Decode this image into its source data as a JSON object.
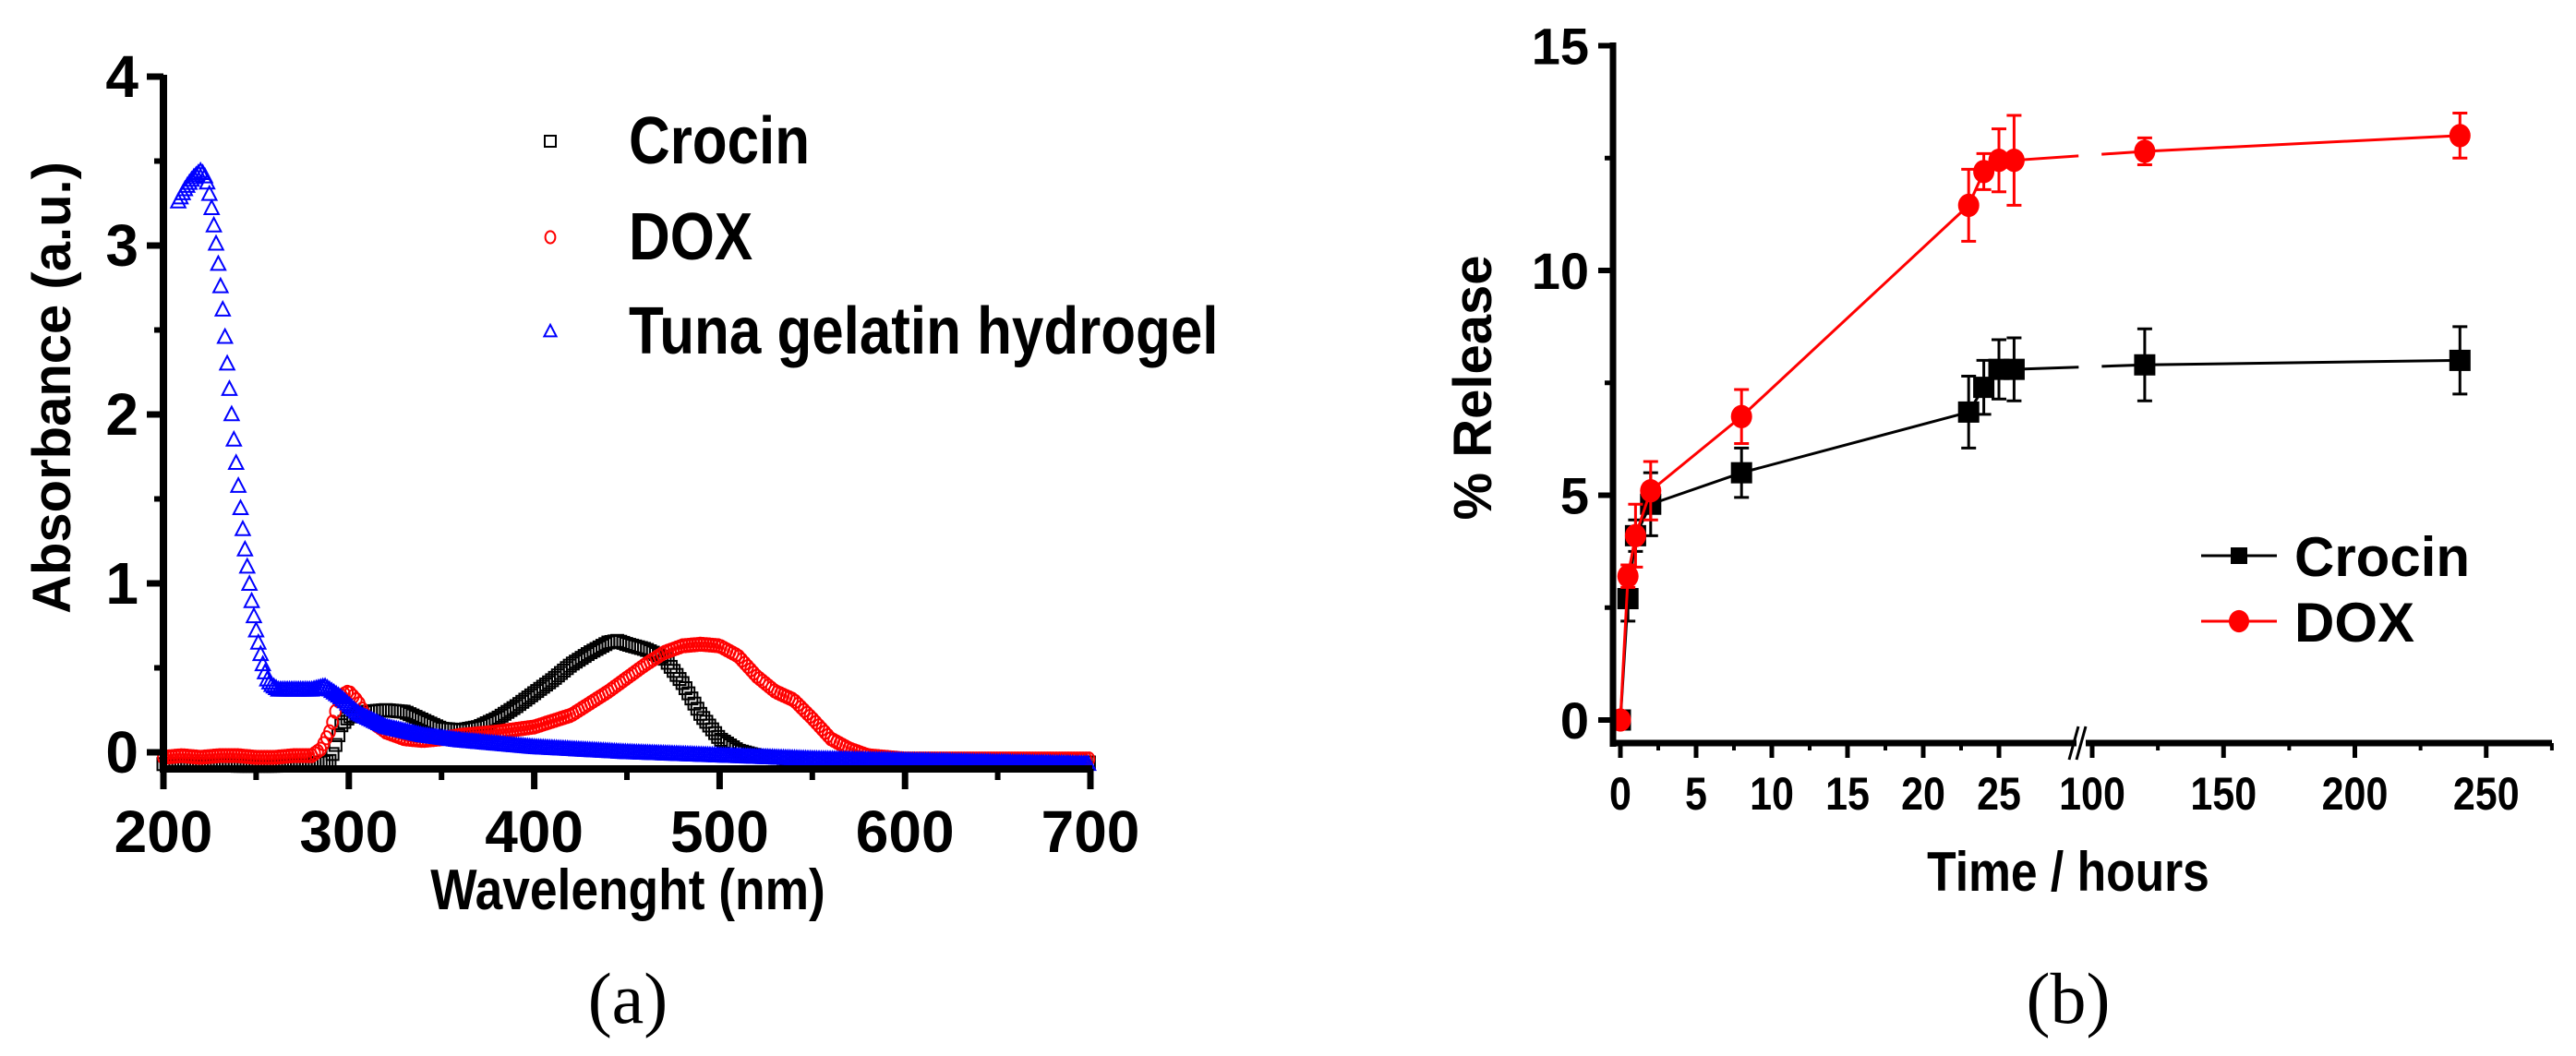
{
  "figure": {
    "panel_labels": [
      "(a)",
      "(b)"
    ]
  },
  "chart_data": [
    {
      "id": "a",
      "type": "scatter",
      "title": "",
      "xlabel": "Wavelenght (nm)",
      "ylabel": "Absorbance (a.u.)",
      "xlim": [
        200,
        700
      ],
      "ylim": [
        -0.1,
        4
      ],
      "xticks": [
        200,
        300,
        400,
        500,
        600,
        700
      ],
      "xtick_labels": [
        "200",
        "300",
        "400",
        "500",
        "600",
        "700"
      ],
      "yticks": [
        0,
        1,
        2,
        3,
        4
      ],
      "ytick_labels": [
        "0",
        "1",
        "2",
        "3",
        "4"
      ],
      "grid": false,
      "legend_position": "upper right",
      "series": [
        {
          "name": "Crocin",
          "marker": "open-square",
          "color": "#000000",
          "x": [
            200,
            220,
            240,
            260,
            280,
            290,
            293,
            296,
            300,
            310,
            320,
            330,
            340,
            350,
            360,
            370,
            380,
            390,
            400,
            410,
            420,
            430,
            440,
            445,
            450,
            460,
            470,
            480,
            490,
            500,
            510,
            520,
            540,
            560,
            600,
            650,
            700
          ],
          "y": [
            -0.07,
            -0.07,
            -0.08,
            -0.08,
            -0.07,
            -0.05,
            0.05,
            0.16,
            0.21,
            0.24,
            0.25,
            0.24,
            0.19,
            0.14,
            0.13,
            0.15,
            0.2,
            0.27,
            0.35,
            0.43,
            0.52,
            0.59,
            0.65,
            0.66,
            0.64,
            0.61,
            0.56,
            0.41,
            0.22,
            0.08,
            0.01,
            -0.02,
            -0.04,
            -0.05,
            -0.06,
            -0.06,
            -0.06
          ]
        },
        {
          "name": "DOX",
          "marker": "open-circle",
          "color": "#ff0000",
          "x": [
            200,
            210,
            220,
            230,
            240,
            250,
            260,
            270,
            280,
            285,
            290,
            295,
            300,
            305,
            310,
            320,
            330,
            340,
            350,
            360,
            380,
            400,
            420,
            440,
            460,
            470,
            480,
            490,
            500,
            510,
            520,
            530,
            540,
            550,
            560,
            570,
            580,
            600,
            650,
            700
          ],
          "y": [
            -0.03,
            -0.02,
            -0.03,
            -0.02,
            -0.02,
            -0.03,
            -0.03,
            -0.02,
            -0.02,
            0.02,
            0.13,
            0.33,
            0.36,
            0.3,
            0.2,
            0.12,
            0.08,
            0.07,
            0.08,
            0.1,
            0.12,
            0.15,
            0.22,
            0.36,
            0.52,
            0.59,
            0.63,
            0.64,
            0.63,
            0.57,
            0.45,
            0.36,
            0.31,
            0.2,
            0.08,
            0.02,
            -0.02,
            -0.04,
            -0.04,
            -0.04
          ]
        },
        {
          "name": "Tuna gelatin hydrogel",
          "marker": "open-triangle",
          "color": "#0000ff",
          "x": [
            208,
            212,
            216,
            220,
            222,
            224,
            226,
            228,
            230,
            232,
            234,
            236,
            238,
            240,
            242,
            244,
            246,
            248,
            250,
            252,
            254,
            256,
            258,
            262,
            270,
            280,
            287,
            295,
            305,
            320,
            340,
            360,
            400,
            450,
            500,
            550,
            600,
            650,
            700
          ],
          "y": [
            3.26,
            3.34,
            3.4,
            3.44,
            3.42,
            3.36,
            3.22,
            3.05,
            2.85,
            2.62,
            2.35,
            2.1,
            1.85,
            1.62,
            1.4,
            1.2,
            1.03,
            0.86,
            0.72,
            0.6,
            0.5,
            0.43,
            0.4,
            0.37,
            0.37,
            0.37,
            0.39,
            0.33,
            0.23,
            0.15,
            0.1,
            0.07,
            0.03,
            0.0,
            -0.02,
            -0.04,
            -0.05,
            -0.06,
            -0.07
          ]
        }
      ]
    },
    {
      "id": "b",
      "type": "line",
      "title": "",
      "xlabel": "Time / hours",
      "ylabel": "% Release",
      "ylim": [
        -1,
        15
      ],
      "yticks": [
        0,
        5,
        10,
        15
      ],
      "ytick_labels": [
        "0",
        "5",
        "10",
        "15"
      ],
      "x_axis_break": {
        "segment1": [
          0,
          27
        ],
        "segment2": [
          90,
          275
        ]
      },
      "xticks": [
        0,
        5,
        10,
        15,
        20,
        25,
        100,
        150,
        200,
        250
      ],
      "xtick_labels": [
        "0",
        "5",
        "10",
        "15",
        "20",
        "25",
        "100",
        "150",
        "200",
        "250"
      ],
      "grid": false,
      "legend_position": "lower right",
      "series": [
        {
          "name": "Crocin",
          "marker": "filled-square",
          "color": "#000000",
          "x": [
            0,
            0.5,
            1,
            2,
            8,
            23,
            24,
            25,
            26,
            120,
            240
          ],
          "y": [
            0,
            2.7,
            4.1,
            4.8,
            5.5,
            6.85,
            7.4,
            7.8,
            7.8,
            7.9,
            8.0
          ],
          "error": [
            0,
            0.5,
            0.35,
            0.7,
            0.55,
            0.8,
            0.6,
            0.66,
            0.7,
            0.8,
            0.75
          ]
        },
        {
          "name": "DOX",
          "marker": "filled-circle",
          "color": "#ff0000",
          "x": [
            0,
            0.5,
            1,
            2,
            8,
            23,
            24,
            25,
            26,
            120,
            240
          ],
          "y": [
            0,
            3.2,
            4.1,
            5.1,
            6.75,
            11.45,
            12.2,
            12.45,
            12.45,
            12.65,
            13.0
          ],
          "error": [
            0,
            0.25,
            0.7,
            0.65,
            0.6,
            0.8,
            0.4,
            0.7,
            1.0,
            0.3,
            0.5
          ]
        }
      ]
    }
  ]
}
